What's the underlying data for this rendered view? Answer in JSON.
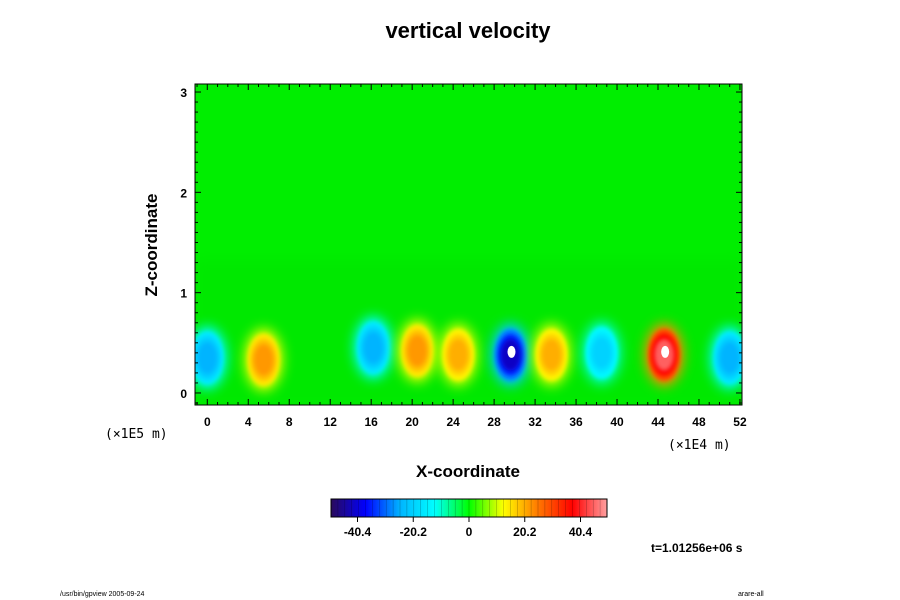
{
  "chart_data": {
    "type": "heatmap",
    "title": "vertical velocity",
    "xlabel": "X-coordinate",
    "ylabel": "Z-coordinate",
    "x_scale_label": "(×1E4 m)",
    "y_scale_label": "(×1E5 m)",
    "xlim": [
      -1.2,
      52.2
    ],
    "ylim": [
      -0.12,
      3.08
    ],
    "x_ticks": [
      0,
      4,
      8,
      12,
      16,
      20,
      24,
      28,
      32,
      36,
      40,
      44,
      48,
      52
    ],
    "y_ticks": [
      0,
      1,
      2,
      3
    ],
    "colorbar": {
      "ticks": [
        "-40.4",
        "-20.2",
        "0",
        "20.2",
        "40.4"
      ],
      "tick_values": [
        -40.4,
        -20.2,
        0,
        20.2,
        40.4
      ],
      "range": [
        -50,
        50
      ],
      "colors": [
        "#2a0a5a",
        "#0000ff",
        "#00b4ff",
        "#00ffff",
        "#00ff00",
        "#ffff00",
        "#ff7800",
        "#ff0000",
        "#ffa0a0"
      ]
    },
    "features": [
      {
        "x": 0.0,
        "z": 0.35,
        "value": -25
      },
      {
        "x": 5.5,
        "z": 0.33,
        "value": 22
      },
      {
        "x": 16.2,
        "z": 0.45,
        "value": -25
      },
      {
        "x": 20.5,
        "z": 0.42,
        "value": 22
      },
      {
        "x": 24.5,
        "z": 0.38,
        "value": 20
      },
      {
        "x": 29.6,
        "z": 0.38,
        "value": -42
      },
      {
        "x": 33.6,
        "z": 0.38,
        "value": 20
      },
      {
        "x": 38.5,
        "z": 0.4,
        "value": -20
      },
      {
        "x": 44.6,
        "z": 0.38,
        "value": 45
      },
      {
        "x": 51.0,
        "z": 0.35,
        "value": -25
      }
    ]
  },
  "annotations": {
    "time": "t=1.01256e+06 s",
    "footer_left": "/usr/bin/gpview 2005-09-24",
    "footer_right": "arare-all"
  }
}
